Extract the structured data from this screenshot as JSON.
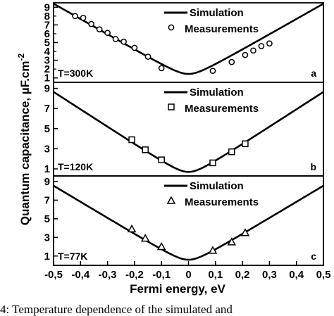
{
  "chart_data": {
    "type": "line",
    "ylabel": "Quantum capacitance, µF.cm",
    "ylabel_sup": "-2",
    "xlabel": "Fermi energy, eV",
    "xlim": [
      -0.5,
      0.5
    ],
    "x_ticks": [
      "-0,5",
      "-0,4",
      "-0,3",
      "-0,2",
      "-0,1",
      "0",
      "0,1",
      "0,2",
      "0,3",
      "0,4",
      "0,5"
    ],
    "panels": [
      {
        "label": "a",
        "temperature": "T=300K",
        "ylim": [
          0.5,
          9.5
        ],
        "y_ticks": [
          "1",
          "3",
          "5",
          "7",
          "9"
        ],
        "y_ticks_minor": [
          "2",
          "4",
          "6",
          "8"
        ],
        "legend": {
          "line": "Simulation",
          "markers": "Measurements",
          "position": "top-right"
        },
        "simulation": {
          "min_x": 0,
          "min_y": 1.45,
          "slope": 17.4
        },
        "marker": "circle",
        "measurements": [
          {
            "x": -0.42,
            "y": 8.0
          },
          {
            "x": -0.39,
            "y": 7.8
          },
          {
            "x": -0.36,
            "y": 7.1
          },
          {
            "x": -0.33,
            "y": 6.5
          },
          {
            "x": -0.3,
            "y": 6.1
          },
          {
            "x": -0.27,
            "y": 5.4
          },
          {
            "x": -0.24,
            "y": 5.1
          },
          {
            "x": -0.2,
            "y": 4.4
          },
          {
            "x": -0.15,
            "y": 3.4
          },
          {
            "x": -0.1,
            "y": 2.1
          },
          {
            "x": 0.09,
            "y": 1.8
          },
          {
            "x": 0.16,
            "y": 2.8
          },
          {
            "x": 0.21,
            "y": 3.6
          },
          {
            "x": 0.24,
            "y": 4.1
          },
          {
            "x": 0.27,
            "y": 4.6
          },
          {
            "x": 0.3,
            "y": 4.9
          }
        ]
      },
      {
        "label": "b",
        "temperature": "T=120K",
        "ylim": [
          0.3,
          9.6
        ],
        "y_ticks": [
          "1",
          "3",
          "5",
          "7",
          "9"
        ],
        "legend": {
          "line": "Simulation",
          "markers": "Measurements",
          "position": "top-right"
        },
        "simulation": {
          "min_x": 0,
          "min_y": 0.7,
          "slope": 17.4
        },
        "marker": "square",
        "measurements": [
          {
            "x": -0.21,
            "y": 3.9
          },
          {
            "x": -0.16,
            "y": 2.9
          },
          {
            "x": -0.1,
            "y": 1.9
          },
          {
            "x": 0.09,
            "y": 1.6
          },
          {
            "x": 0.16,
            "y": 2.7
          },
          {
            "x": 0.21,
            "y": 3.5
          }
        ]
      },
      {
        "label": "c",
        "temperature": "T=77K",
        "ylim": [
          0.0,
          9.6
        ],
        "y_ticks": [
          "1",
          "3",
          "5",
          "7",
          "9"
        ],
        "legend": {
          "line": "Simulation",
          "markers": "Measurements",
          "position": "top-right"
        },
        "simulation": {
          "min_x": 0,
          "min_y": 0.6,
          "slope": 17.4
        },
        "marker": "triangle",
        "measurements": [
          {
            "x": -0.21,
            "y": 3.9
          },
          {
            "x": -0.16,
            "y": 2.9
          },
          {
            "x": -0.1,
            "y": 2.0
          },
          {
            "x": 0.09,
            "y": 1.6
          },
          {
            "x": 0.16,
            "y": 2.5
          },
          {
            "x": 0.21,
            "y": 3.5
          }
        ]
      }
    ]
  },
  "caption": "4: Temperature dependence of the simulated and"
}
